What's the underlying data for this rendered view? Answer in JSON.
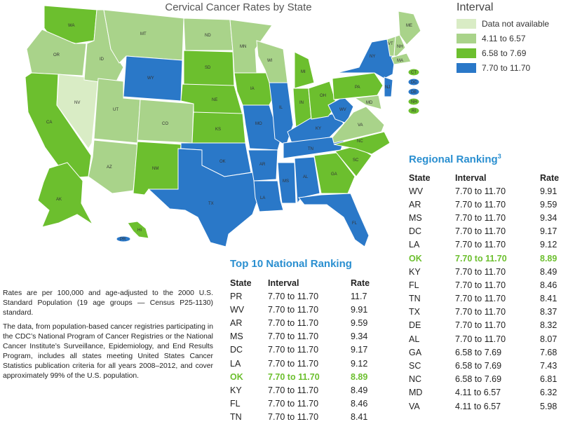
{
  "map": {
    "title": "Cervical Cancer Rates by State",
    "colors": {
      "na": "#d9ecc5",
      "low": "#a9d38a",
      "mid": "#6cbf2e",
      "high": "#2a78c8",
      "border": "#ffffff"
    },
    "state_labels": [
      "WA",
      "OR",
      "CA",
      "NV",
      "ID",
      "MT",
      "WY",
      "UT",
      "AZ",
      "CO",
      "NM",
      "ND",
      "SD",
      "NE",
      "KS",
      "OK",
      "TX",
      "MN",
      "IA",
      "MO",
      "AR",
      "LA",
      "WI",
      "IL",
      "MS",
      "MI",
      "IN",
      "KY",
      "TN",
      "AL",
      "OH",
      "WV",
      "GA",
      "FL",
      "SC",
      "NC",
      "VA",
      "PA",
      "NY",
      "ME",
      "VT",
      "NH",
      "MA",
      "NJ",
      "MD",
      "AK",
      "HI",
      "PR",
      "CT",
      "DC",
      "DE",
      "NH",
      "RI"
    ]
  },
  "legend": {
    "title": "Interval",
    "items": [
      {
        "label": "Data not available",
        "color": "#d9ecc5"
      },
      {
        "label": "4.11 to 6.57",
        "color": "#a9d38a"
      },
      {
        "label": "6.58 to 7.69",
        "color": "#6cbf2e"
      },
      {
        "label": "7.70 to 11.70",
        "color": "#2a78c8"
      }
    ]
  },
  "national": {
    "title": "Top 10 National Ranking",
    "headers": [
      "State",
      "Interval",
      "Rate"
    ],
    "rows": [
      [
        "PR",
        "7.70 to 11.70",
        "11.7"
      ],
      [
        "WV",
        "7.70 to 11.70",
        "9.91"
      ],
      [
        "AR",
        "7.70 to 11.70",
        "9.59"
      ],
      [
        "MS",
        "7.70 to 11.70",
        "9.34"
      ],
      [
        "DC",
        "7.70 to 11.70",
        "9.17"
      ],
      [
        "LA",
        "7.70 to 11.70",
        "9.12"
      ],
      [
        "OK",
        "7.70 to 11.70",
        "8.89"
      ],
      [
        "KY",
        "7.70 to 11.70",
        "8.49"
      ],
      [
        "FL",
        "7.70 to 11.70",
        "8.46"
      ],
      [
        "TN",
        "7.70 to 11.70",
        "8.41"
      ]
    ],
    "highlight_state": "OK"
  },
  "regional": {
    "title": "Regional Ranking",
    "title_sup": "3",
    "headers": [
      "State",
      "Interval",
      "Rate"
    ],
    "rows": [
      [
        "WV",
        "7.70 to 11.70",
        "9.91"
      ],
      [
        "AR",
        "7.70 to 11.70",
        "9.59"
      ],
      [
        "MS",
        "7.70 to 11.70",
        "9.34"
      ],
      [
        "DC",
        "7.70 to 11.70",
        "9.17"
      ],
      [
        "LA",
        "7.70 to 11.70",
        "9.12"
      ],
      [
        "OK",
        "7.70 to 11.70",
        "8.89"
      ],
      [
        "KY",
        "7.70 to 11.70",
        "8.49"
      ],
      [
        "FL",
        "7.70 to 11.70",
        "8.46"
      ],
      [
        "TN",
        "7.70 to 11.70",
        "8.41"
      ],
      [
        "TX",
        "7.70 to 11.70",
        "8.37"
      ],
      [
        "DE",
        "7.70 to 11.70",
        "8.32"
      ],
      [
        "AL",
        "7.70 to 11.70",
        "8.07"
      ],
      [
        "GA",
        "6.58 to 7.69",
        "7.68"
      ],
      [
        "SC",
        "6.58 to 7.69",
        "7.43"
      ],
      [
        "NC",
        "6.58 to 7.69",
        "6.81"
      ],
      [
        "MD",
        "4.11 to 6.57",
        "6.32"
      ],
      [
        "VA",
        "4.11 to 6.57",
        "5.98"
      ]
    ],
    "highlight_state": "OK"
  },
  "notes": [
    "Rates are per 100,000 and age-adjusted to the 2000 U.S. Standard Population (19 age groups — Census P25-1130) standard.",
    "The data, from population-based cancer registries participating in the CDC’s National Program of Cancer Registries or the National Cancer Institute’s Surveillance, Epidemiology, and End Results Program, includes all states meeting United States Cancer Statistics publication criteria for all years 2008–2012, and cover approximately 99% of the U.S. population."
  ]
}
